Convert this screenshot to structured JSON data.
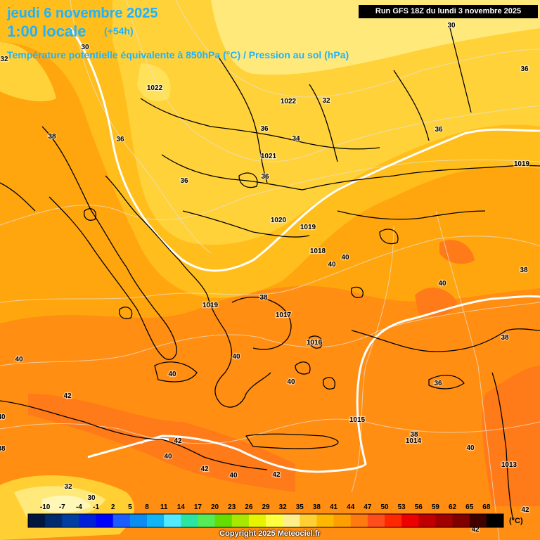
{
  "header": {
    "date": "jeudi 6 novembre 2025",
    "time": "1:00 locale",
    "lead": "(+54h)",
    "parameter": "Température potentielle équivalente à 850hPa (°C) / Pression au sol (hPa)",
    "run": "Run GFS 18Z du lundi 3 novembre 2025"
  },
  "footer": {
    "copyright": "Copyright 2025 Meteociel.fr"
  },
  "colorbar": {
    "unit": "(°C)",
    "ticks": [
      "-10",
      "-7",
      "-4",
      "-1",
      "2",
      "5",
      "8",
      "11",
      "14",
      "17",
      "20",
      "23",
      "26",
      "29",
      "32",
      "35",
      "38",
      "41",
      "44",
      "47",
      "50",
      "53",
      "56",
      "59",
      "62",
      "65",
      "68"
    ],
    "colors": [
      "#00163f",
      "#002a6e",
      "#003fa1",
      "#0020d8",
      "#0000ff",
      "#1d5cff",
      "#0a8cf0",
      "#11b4f5",
      "#52eaff",
      "#2be6a0",
      "#55ec55",
      "#66dd00",
      "#a6e800",
      "#e7f400",
      "#ffff40",
      "#ffee8c",
      "#ffcf33",
      "#ffb800",
      "#ff9e00",
      "#ff7a10",
      "#ff4e1c",
      "#ff2800",
      "#ee0000",
      "#c00000",
      "#a00000",
      "#800000",
      "#400000",
      "#000000"
    ]
  },
  "pressure_labels": [
    {
      "name": "isobar-1022-north",
      "value": "1022"
    },
    {
      "name": "isobar-1022-carpathian",
      "value": "1022"
    },
    {
      "name": "isobar-1021",
      "value": "1021"
    },
    {
      "name": "isobar-1020",
      "value": "1020"
    },
    {
      "name": "isobar-1019-black-sea",
      "value": "1019"
    },
    {
      "name": "isobar-1019-east",
      "value": "1019"
    },
    {
      "name": "isobar-1019-balkans",
      "value": "1019"
    },
    {
      "name": "isobar-1018",
      "value": "1018"
    },
    {
      "name": "isobar-1017",
      "value": "1017"
    },
    {
      "name": "isobar-1016",
      "value": "1016"
    },
    {
      "name": "isobar-1015",
      "value": "1015"
    },
    {
      "name": "isobar-1014",
      "value": "1014"
    },
    {
      "name": "isobar-1013",
      "value": "1013"
    }
  ],
  "temperature_labels": [
    {
      "name": "theta-e-32-northwest",
      "value": "32"
    },
    {
      "name": "theta-e-30-northwest",
      "value": "30"
    },
    {
      "name": "theta-e-30-top-right",
      "value": "30"
    },
    {
      "name": "theta-e-32-north",
      "value": "32"
    },
    {
      "name": "theta-e-36-east",
      "value": "36"
    },
    {
      "name": "theta-e-38-west",
      "value": "38"
    },
    {
      "name": "theta-e-36-alps",
      "value": "36"
    },
    {
      "name": "theta-e-36-hungary",
      "value": "36"
    },
    {
      "name": "theta-e-34-romania",
      "value": "34"
    },
    {
      "name": "theta-e-36-russia",
      "value": "36"
    },
    {
      "name": "theta-e-36-serbia",
      "value": "36"
    },
    {
      "name": "theta-e-36-balkans",
      "value": "36"
    },
    {
      "name": "theta-e-40-turkey-west",
      "value": "40"
    },
    {
      "name": "theta-e-40-turkey",
      "value": "40"
    },
    {
      "name": "theta-e-38-turkey-east",
      "value": "38"
    },
    {
      "name": "theta-e-40-anatolia",
      "value": "40"
    },
    {
      "name": "theta-e-38-greece",
      "value": "38"
    },
    {
      "name": "theta-e-38-levant",
      "value": "38"
    },
    {
      "name": "theta-e-40-italy",
      "value": "40"
    },
    {
      "name": "theta-e-40-ionian",
      "value": "40"
    },
    {
      "name": "theta-e-40-spain",
      "value": "40"
    },
    {
      "name": "theta-e-42-tunisia",
      "value": "42"
    },
    {
      "name": "theta-e-40-aegean",
      "value": "40"
    },
    {
      "name": "theta-e-36-cyprus",
      "value": "36"
    },
    {
      "name": "theta-e-42-libya-west",
      "value": "42"
    },
    {
      "name": "theta-e-40-libya",
      "value": "40"
    },
    {
      "name": "theta-e-42-libya-central",
      "value": "42"
    },
    {
      "name": "theta-e-40-libya-coast",
      "value": "40"
    },
    {
      "name": "theta-e-42-egypt",
      "value": "42"
    },
    {
      "name": "theta-e-38-israel",
      "value": "38"
    },
    {
      "name": "theta-e-40-middle-east",
      "value": "40"
    },
    {
      "name": "theta-e-32-sahara",
      "value": "32"
    },
    {
      "name": "theta-e-30-sahara",
      "value": "30"
    },
    {
      "name": "theta-e-42-southeast",
      "value": "42"
    },
    {
      "name": "theta-e-42-bottom",
      "value": "42"
    },
    {
      "name": "theta-e-40-left-edge",
      "value": "40"
    },
    {
      "name": "theta-e-38-left-edge",
      "value": "38"
    }
  ]
}
